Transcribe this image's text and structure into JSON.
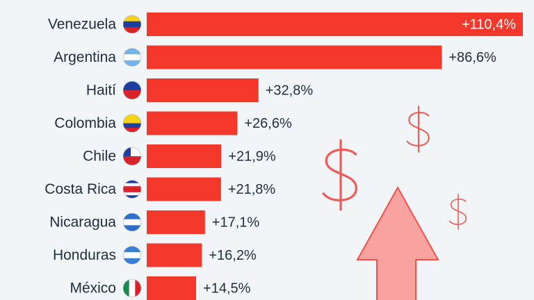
{
  "chart_data": {
    "type": "bar",
    "orientation": "horizontal",
    "categories": [
      "Venezuela",
      "Argentina",
      "Haití",
      "Colombia",
      "Chile",
      "Costa Rica",
      "Nicaragua",
      "Honduras",
      "México"
    ],
    "values": [
      110.4,
      86.6,
      32.8,
      26.6,
      21.9,
      21.8,
      17.1,
      16.2,
      14.5
    ],
    "value_labels": [
      "+110,4%",
      "+86,6%",
      "+32,8%",
      "+26,6%",
      "+21,9%",
      "+21,8%",
      "+17,1%",
      "+16,2%",
      "+14,5%"
    ],
    "color": "#f4372b"
  }
}
